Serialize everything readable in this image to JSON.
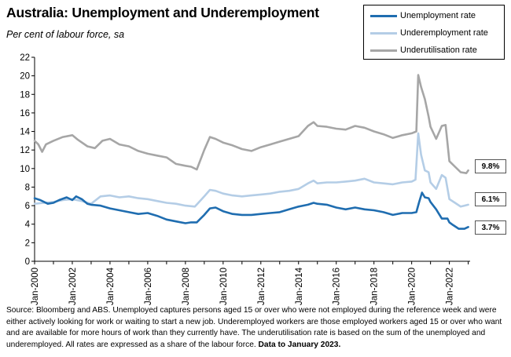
{
  "title": "Australia: Unemployment and Underemployment",
  "subtitle": "Per cent of labour force, sa",
  "legend": [
    {
      "label": "Unemployment  rate",
      "color": "#1F6DB0"
    },
    {
      "label": "Underemployment rate",
      "color": "#B4CDE6"
    },
    {
      "label": "Underutilisation rate",
      "color": "#A6A6A6"
    }
  ],
  "callouts": {
    "underutilisation": "9.8%",
    "underemployment": "6.1%",
    "unemployment": "3.7%"
  },
  "source": {
    "text": "Source: Bloomberg and ABS. Unemployed captures persons aged 15 or over who were not employed during the reference week and were either actively looking for work or waiting to start a new job.  Underemployed workers are those employed workers aged 15 or over who want and are available for more hours of work than they currently have.  The underutilisation rate is based on the sum of the unemployed and underemployed. All rates are expressed as a share of the labour force.",
    "bold_note": "Data to January 2023."
  },
  "chart_data": {
    "type": "line",
    "title": "Australia: Unemployment and Underemployment",
    "ylabel": "",
    "xlabel": "",
    "ylim": [
      0,
      22
    ],
    "yticks": [
      "0",
      "2",
      "4",
      "6",
      "8",
      "10",
      "12",
      "14",
      "16",
      "18",
      "20",
      "22"
    ],
    "xlim": [
      2000.0,
      2023.1
    ],
    "xticks": [
      {
        "x": 2000,
        "label": "Jan-2000"
      },
      {
        "x": 2002,
        "label": "Jan-2002"
      },
      {
        "x": 2004,
        "label": "Jan-2004"
      },
      {
        "x": 2006,
        "label": "Jan-2006"
      },
      {
        "x": 2008,
        "label": "Jan-2008"
      },
      {
        "x": 2010,
        "label": "Jan-2010"
      },
      {
        "x": 2012,
        "label": "Jan-2012"
      },
      {
        "x": 2014,
        "label": "Jan-2014"
      },
      {
        "x": 2016,
        "label": "Jan-2016"
      },
      {
        "x": 2018,
        "label": "Jan-2018"
      },
      {
        "x": 2020,
        "label": "Jan-2020"
      },
      {
        "x": 2022,
        "label": "Jan-2022"
      }
    ],
    "grid": false,
    "legend_position": "top-right",
    "series": [
      {
        "name": "Unemployment  rate",
        "color": "#1F6DB0",
        "width": 2.6,
        "points": [
          [
            2000.0,
            6.8
          ],
          [
            2000.3,
            6.6
          ],
          [
            2000.7,
            6.2
          ],
          [
            2001.0,
            6.3
          ],
          [
            2001.3,
            6.6
          ],
          [
            2001.7,
            6.9
          ],
          [
            2002.0,
            6.6
          ],
          [
            2002.2,
            7.0
          ],
          [
            2002.5,
            6.7
          ],
          [
            2002.8,
            6.2
          ],
          [
            2003.0,
            6.1
          ],
          [
            2003.5,
            6.0
          ],
          [
            2004.0,
            5.7
          ],
          [
            2004.5,
            5.5
          ],
          [
            2005.0,
            5.3
          ],
          [
            2005.5,
            5.1
          ],
          [
            2006.0,
            5.2
          ],
          [
            2006.5,
            4.9
          ],
          [
            2007.0,
            4.5
          ],
          [
            2007.5,
            4.3
          ],
          [
            2008.0,
            4.1
          ],
          [
            2008.3,
            4.2
          ],
          [
            2008.6,
            4.2
          ],
          [
            2009.0,
            5.0
          ],
          [
            2009.3,
            5.7
          ],
          [
            2009.6,
            5.8
          ],
          [
            2010.0,
            5.4
          ],
          [
            2010.5,
            5.1
          ],
          [
            2011.0,
            5.0
          ],
          [
            2011.5,
            5.0
          ],
          [
            2012.0,
            5.1
          ],
          [
            2012.5,
            5.2
          ],
          [
            2013.0,
            5.3
          ],
          [
            2013.5,
            5.6
          ],
          [
            2014.0,
            5.9
          ],
          [
            2014.5,
            6.1
          ],
          [
            2014.8,
            6.3
          ],
          [
            2015.0,
            6.2
          ],
          [
            2015.5,
            6.1
          ],
          [
            2016.0,
            5.8
          ],
          [
            2016.5,
            5.6
          ],
          [
            2017.0,
            5.8
          ],
          [
            2017.5,
            5.6
          ],
          [
            2018.0,
            5.5
          ],
          [
            2018.5,
            5.3
          ],
          [
            2019.0,
            5.0
          ],
          [
            2019.5,
            5.2
          ],
          [
            2020.0,
            5.2
          ],
          [
            2020.25,
            5.3
          ],
          [
            2020.4,
            6.4
          ],
          [
            2020.55,
            7.4
          ],
          [
            2020.7,
            6.9
          ],
          [
            2020.9,
            6.8
          ],
          [
            2021.0,
            6.4
          ],
          [
            2021.3,
            5.6
          ],
          [
            2021.6,
            4.6
          ],
          [
            2021.9,
            4.6
          ],
          [
            2022.0,
            4.2
          ],
          [
            2022.2,
            3.9
          ],
          [
            2022.5,
            3.5
          ],
          [
            2022.8,
            3.5
          ],
          [
            2023.0,
            3.7
          ]
        ]
      },
      {
        "name": "Underemployment rate",
        "color": "#B4CDE6",
        "width": 2.6,
        "points": [
          [
            2000.0,
            6.2
          ],
          [
            2000.5,
            6.3
          ],
          [
            2001.0,
            6.4
          ],
          [
            2001.5,
            6.6
          ],
          [
            2002.0,
            6.7
          ],
          [
            2002.5,
            6.5
          ],
          [
            2003.0,
            6.2
          ],
          [
            2003.5,
            7.0
          ],
          [
            2004.0,
            7.1
          ],
          [
            2004.5,
            6.9
          ],
          [
            2005.0,
            7.0
          ],
          [
            2005.5,
            6.8
          ],
          [
            2006.0,
            6.7
          ],
          [
            2006.5,
            6.5
          ],
          [
            2007.0,
            6.3
          ],
          [
            2007.5,
            6.2
          ],
          [
            2008.0,
            6.0
          ],
          [
            2008.5,
            5.9
          ],
          [
            2009.0,
            7.0
          ],
          [
            2009.3,
            7.7
          ],
          [
            2009.6,
            7.6
          ],
          [
            2010.0,
            7.3
          ],
          [
            2010.5,
            7.1
          ],
          [
            2011.0,
            7.0
          ],
          [
            2011.5,
            7.1
          ],
          [
            2012.0,
            7.2
          ],
          [
            2012.5,
            7.3
          ],
          [
            2013.0,
            7.5
          ],
          [
            2013.5,
            7.6
          ],
          [
            2014.0,
            7.8
          ],
          [
            2014.5,
            8.4
          ],
          [
            2014.8,
            8.7
          ],
          [
            2015.0,
            8.4
          ],
          [
            2015.5,
            8.5
          ],
          [
            2016.0,
            8.5
          ],
          [
            2016.5,
            8.6
          ],
          [
            2017.0,
            8.7
          ],
          [
            2017.5,
            8.9
          ],
          [
            2018.0,
            8.5
          ],
          [
            2018.5,
            8.4
          ],
          [
            2019.0,
            8.3
          ],
          [
            2019.5,
            8.5
          ],
          [
            2020.0,
            8.6
          ],
          [
            2020.2,
            8.8
          ],
          [
            2020.35,
            13.8
          ],
          [
            2020.5,
            11.5
          ],
          [
            2020.7,
            9.8
          ],
          [
            2020.9,
            9.6
          ],
          [
            2021.0,
            8.5
          ],
          [
            2021.3,
            7.8
          ],
          [
            2021.6,
            9.3
          ],
          [
            2021.8,
            9.0
          ],
          [
            2022.0,
            6.7
          ],
          [
            2022.3,
            6.3
          ],
          [
            2022.6,
            5.9
          ],
          [
            2022.8,
            6.0
          ],
          [
            2023.0,
            6.1
          ]
        ]
      },
      {
        "name": "Underutilisation rate",
        "color": "#A6A6A6",
        "width": 2.6,
        "points": [
          [
            2000.0,
            13.0
          ],
          [
            2000.2,
            12.6
          ],
          [
            2000.4,
            11.8
          ],
          [
            2000.6,
            12.6
          ],
          [
            2001.0,
            13.0
          ],
          [
            2001.5,
            13.4
          ],
          [
            2002.0,
            13.6
          ],
          [
            2002.3,
            13.1
          ],
          [
            2002.8,
            12.4
          ],
          [
            2003.2,
            12.2
          ],
          [
            2003.6,
            13.0
          ],
          [
            2004.0,
            13.2
          ],
          [
            2004.5,
            12.6
          ],
          [
            2005.0,
            12.4
          ],
          [
            2005.5,
            11.9
          ],
          [
            2006.0,
            11.6
          ],
          [
            2006.5,
            11.4
          ],
          [
            2007.0,
            11.2
          ],
          [
            2007.5,
            10.5
          ],
          [
            2008.0,
            10.3
          ],
          [
            2008.3,
            10.2
          ],
          [
            2008.6,
            9.9
          ],
          [
            2009.0,
            12.0
          ],
          [
            2009.3,
            13.4
          ],
          [
            2009.6,
            13.2
          ],
          [
            2010.0,
            12.8
          ],
          [
            2010.5,
            12.5
          ],
          [
            2011.0,
            12.1
          ],
          [
            2011.5,
            11.9
          ],
          [
            2012.0,
            12.3
          ],
          [
            2012.5,
            12.6
          ],
          [
            2013.0,
            12.9
          ],
          [
            2013.5,
            13.2
          ],
          [
            2014.0,
            13.5
          ],
          [
            2014.5,
            14.6
          ],
          [
            2014.8,
            15.0
          ],
          [
            2015.0,
            14.6
          ],
          [
            2015.5,
            14.5
          ],
          [
            2016.0,
            14.3
          ],
          [
            2016.5,
            14.2
          ],
          [
            2017.0,
            14.6
          ],
          [
            2017.5,
            14.4
          ],
          [
            2018.0,
            14.0
          ],
          [
            2018.5,
            13.7
          ],
          [
            2019.0,
            13.3
          ],
          [
            2019.5,
            13.6
          ],
          [
            2020.0,
            13.8
          ],
          [
            2020.25,
            14.0
          ],
          [
            2020.35,
            20.1
          ],
          [
            2020.5,
            18.8
          ],
          [
            2020.7,
            17.5
          ],
          [
            2020.9,
            15.6
          ],
          [
            2021.0,
            14.5
          ],
          [
            2021.3,
            13.2
          ],
          [
            2021.6,
            14.6
          ],
          [
            2021.8,
            14.7
          ],
          [
            2022.0,
            10.8
          ],
          [
            2022.3,
            10.2
          ],
          [
            2022.6,
            9.6
          ],
          [
            2022.9,
            9.5
          ],
          [
            2023.0,
            9.8
          ]
        ]
      }
    ]
  }
}
